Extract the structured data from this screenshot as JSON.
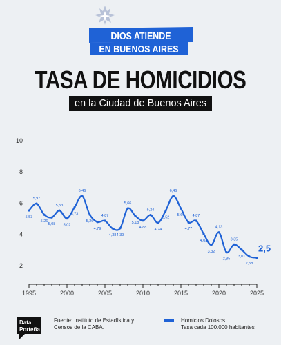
{
  "badge": {
    "line1": "DIOS ATIENDE",
    "line2": "EN BUENOS AIRES",
    "color": "#1f62d6"
  },
  "header": {
    "title": "TASA DE HOMICIDIOS",
    "subtitle": "en la Ciudad de Buenos Aires"
  },
  "footer": {
    "logo_line1": "Data",
    "logo_line2": "Porteña",
    "source_line1": "Fuente: Instituto de Estadística y",
    "source_line2": "Censos de la CABA.",
    "legend_line1": "Homicios Dolosos.",
    "legend_line2": "Tasa cada 100.000 habitantes"
  },
  "chart_data": {
    "type": "line",
    "title": "TASA DE HOMICIDIOS",
    "subtitle": "en la Ciudad de Buenos Aires",
    "series": [
      {
        "name": "Homicios Dolosos. Tasa cada 100.000 habitantes",
        "color": "#1f62d6",
        "values": [
          5.53,
          5.97,
          5.26,
          5.08,
          5.53,
          5.02,
          5.73,
          6.46,
          5.26,
          4.79,
          4.87,
          4.38,
          4.39,
          5.66,
          5.18,
          4.88,
          5.24,
          4.74,
          5.52,
          6.46,
          5.66,
          4.77,
          4.87,
          4.03,
          3.32,
          4.13,
          2.85,
          3.35,
          3.01,
          2.58,
          2.5
        ]
      }
    ],
    "x": [
      1995,
      1996,
      1997,
      1998,
      1999,
      2000,
      2001,
      2002,
      2003,
      2004,
      2005,
      2006,
      2007,
      2008,
      2009,
      2010,
      2011,
      2012,
      2013,
      2014,
      2015,
      2016,
      2017,
      2018,
      2019,
      2020,
      2021,
      2022,
      2023,
      2024,
      2025
    ],
    "labels": [
      "5,53",
      "5,97",
      "5,26",
      "5,08",
      "5,53",
      "5,02",
      "5,73",
      "6,46",
      "5,26",
      "4,79",
      "4,87",
      "4,38",
      "4,39",
      "5,66",
      "5,18",
      "4,88",
      "5,24",
      "4,74",
      "5,52",
      "6,46",
      "5,66",
      "4,77",
      "4,87",
      "4,03",
      "3,32",
      "4,13",
      "2,85",
      "3,35",
      "3,01",
      "2,58",
      "2,5"
    ],
    "x_ticks": [
      1995,
      2000,
      2005,
      2010,
      2015,
      2020,
      2025
    ],
    "y_ticks": [
      2,
      4,
      6,
      8,
      10
    ],
    "ylim": [
      0.8,
      10
    ],
    "xlim": [
      1995,
      2025
    ],
    "grid": false,
    "legend": "bottom-right"
  }
}
